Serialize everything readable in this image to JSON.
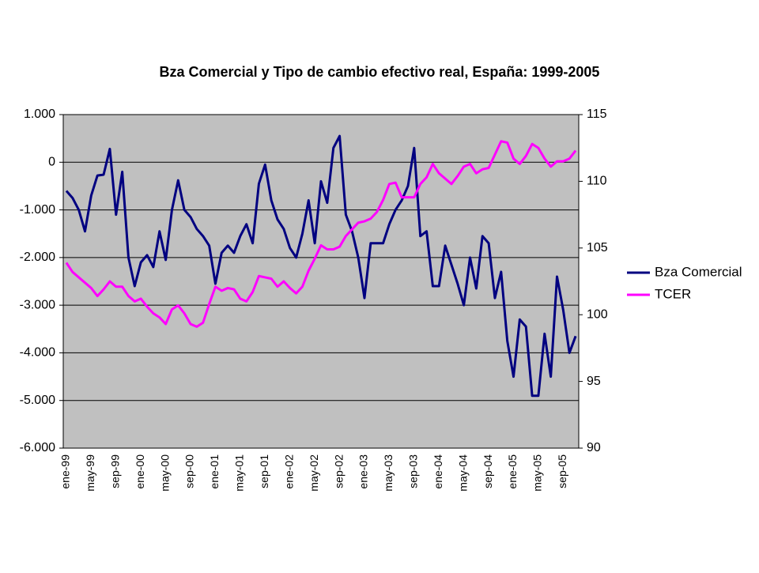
{
  "chart_data": {
    "type": "line",
    "title": "Bza Comercial y Tipo de cambio efectivo real, España: 1999-2005",
    "categories": [
      "ene-99",
      null,
      null,
      null,
      "may-99",
      null,
      null,
      null,
      "sep-99",
      null,
      null,
      null,
      "ene-00",
      null,
      null,
      null,
      "may-00",
      null,
      null,
      null,
      "sep-00",
      null,
      null,
      null,
      "ene-01",
      null,
      null,
      null,
      "may-01",
      null,
      null,
      null,
      "sep-01",
      null,
      null,
      null,
      "ene-02",
      null,
      null,
      null,
      "may-02",
      null,
      null,
      null,
      "sep-02",
      null,
      null,
      null,
      "ene-03",
      null,
      null,
      null,
      "may-03",
      null,
      null,
      null,
      "sep-03",
      null,
      null,
      null,
      "ene-04",
      null,
      null,
      null,
      "may-04",
      null,
      null,
      null,
      "sep-04",
      null,
      null,
      null,
      "ene-05",
      null,
      null,
      null,
      "may-05",
      null,
      null,
      null,
      "sep-05",
      null,
      null
    ],
    "series": [
      {
        "name": "Bza Comercial",
        "color": "#000080",
        "values": [
          -600,
          -750,
          -1000,
          -1450,
          -700,
          -280,
          -260,
          280,
          -1100,
          -200,
          -2000,
          -2600,
          -2100,
          -1950,
          -2200,
          -1450,
          -2050,
          -1000,
          -380,
          -1000,
          -1150,
          -1400,
          -1550,
          -1750,
          -2550,
          -1900,
          -1750,
          -1900,
          -1550,
          -1300,
          -1700,
          -450,
          -50,
          -800,
          -1200,
          -1400,
          -1800,
          -2000,
          -1500,
          -800,
          -1700,
          -400,
          -850,
          300,
          550,
          -1100,
          -1450,
          -2000,
          -2850,
          -1700,
          -1700,
          -1700,
          -1300,
          -1000,
          -800,
          -500,
          300,
          -1550,
          -1450,
          -2600,
          -2600,
          -1750,
          -2150,
          -2550,
          -3000,
          -2000,
          -2650,
          -1550,
          -1700,
          -2850,
          -2300,
          -3750,
          -4500,
          -3300,
          -3450,
          -4900,
          -4900,
          -3600,
          -4500,
          -2400,
          -3100,
          -4000,
          -3650
        ]
      },
      {
        "name": "TCER",
        "color": "#ff00ff",
        "axis": "y2",
        "values": [
          103.9,
          103.2,
          102.8,
          102.4,
          102.0,
          101.4,
          101.9,
          102.5,
          102.1,
          102.1,
          101.4,
          101.0,
          101.2,
          100.6,
          100.1,
          99.8,
          99.3,
          100.4,
          100.7,
          100.1,
          99.3,
          99.1,
          99.4,
          100.8,
          102.1,
          101.8,
          102.0,
          101.9,
          101.2,
          101.0,
          101.7,
          102.9,
          102.8,
          102.7,
          102.1,
          102.5,
          102.0,
          101.6,
          102.1,
          103.3,
          104.2,
          105.2,
          104.9,
          104.9,
          105.1,
          105.9,
          106.4,
          106.9,
          107.0,
          107.2,
          107.7,
          108.6,
          109.8,
          109.9,
          108.8,
          108.8,
          108.8,
          109.8,
          110.3,
          111.3,
          110.6,
          110.2,
          109.8,
          110.4,
          111.1,
          111.3,
          110.6,
          110.9,
          111.0,
          112.0,
          113.0,
          112.9,
          111.7,
          111.3,
          111.9,
          112.8,
          112.5,
          111.7,
          111.1,
          111.5,
          111.5,
          111.7,
          112.3
        ]
      }
    ],
    "ylim": [
      -6000,
      1000
    ],
    "yticks": [
      {
        "value": -6000,
        "label": "-6.000"
      },
      {
        "value": -5000,
        "label": "-5.000"
      },
      {
        "value": -4000,
        "label": "-4.000"
      },
      {
        "value": -3000,
        "label": "-3.000"
      },
      {
        "value": -2000,
        "label": "-2.000"
      },
      {
        "value": -1000,
        "label": "-1.000"
      },
      0,
      {
        "value": 1000,
        "label": "1.000"
      }
    ],
    "y2lim": [
      90,
      115
    ],
    "y2ticks": [
      90,
      95,
      100,
      105,
      110,
      115
    ],
    "grid": true,
    "legend": "right"
  }
}
